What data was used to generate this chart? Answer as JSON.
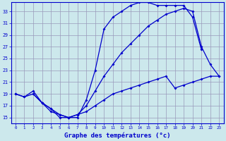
{
  "xlabel": "Graphe des températures (°c)",
  "bg_color": "#cce8ec",
  "grid_color": "#9999bb",
  "line_color": "#0000cc",
  "xlim": [
    -0.5,
    23.5
  ],
  "ylim": [
    14,
    34.5
  ],
  "xticks": [
    0,
    1,
    2,
    3,
    4,
    5,
    6,
    7,
    8,
    9,
    10,
    11,
    12,
    13,
    14,
    15,
    16,
    17,
    18,
    19,
    20,
    21,
    22,
    23
  ],
  "yticks": [
    15,
    17,
    19,
    21,
    23,
    25,
    27,
    29,
    31,
    33
  ],
  "curve1_x": [
    0,
    1,
    2,
    3,
    4,
    5,
    6,
    7,
    8,
    9,
    10,
    11,
    12,
    13,
    14,
    15,
    16,
    17,
    18,
    19,
    20,
    21
  ],
  "curve1_y": [
    19,
    18.5,
    19,
    17.5,
    16.5,
    15,
    15,
    15,
    18,
    23,
    30,
    32,
    33,
    34,
    34.5,
    34.5,
    34,
    34,
    34,
    34,
    32,
    26.5
  ],
  "curve2_x": [
    2,
    3,
    4,
    5,
    6,
    7,
    8,
    9,
    10,
    11,
    12,
    13,
    14,
    15,
    16,
    17,
    18,
    19,
    20,
    21,
    22,
    23
  ],
  "curve2_y": [
    19,
    17.5,
    16.5,
    15.5,
    15,
    15.5,
    17,
    19.5,
    22,
    24,
    26,
    27.5,
    29,
    30.5,
    31.5,
    32.5,
    33,
    33.5,
    33,
    27,
    24,
    22
  ],
  "curve3_x": [
    0,
    1,
    2,
    3,
    4,
    5,
    6,
    7,
    8,
    9,
    10,
    11,
    12,
    13,
    14,
    15,
    16,
    17,
    18,
    19,
    20,
    21,
    22,
    23
  ],
  "curve3_y": [
    19,
    18.5,
    19.5,
    17.5,
    16,
    15.5,
    15,
    15.5,
    16,
    17,
    18,
    19,
    19.5,
    20,
    20.5,
    21,
    21.5,
    22,
    20,
    20.5,
    21,
    21.5,
    22,
    22
  ]
}
